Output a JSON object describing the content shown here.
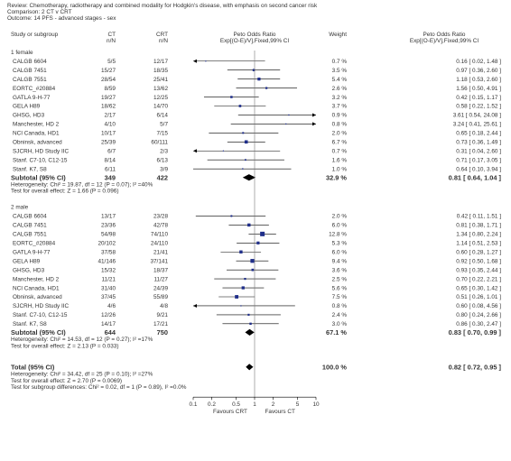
{
  "header": {
    "review": "Review:  Chemotherapy, radiotherapy and combined modality for Hodgkin's disease, with emphasis on second cancer risk",
    "comparison": "Comparison:  2 CT v CRT",
    "outcome": "Outcome:  14 PFS - advanced stages - sex"
  },
  "columns": {
    "study": "Study or subgroup",
    "ct": "CT",
    "crt": "CRT",
    "n_over_n": "n/N",
    "or_title": "Peto Odds Ratio",
    "or_sub": "Exp[(O-E)/V],Fixed,99% CI",
    "weight": "Weight",
    "or2_title": "Peto Odds Ratio",
    "or2_sub": "Exp[(O-E)/V],Fixed,99% CI"
  },
  "chart_data": {
    "type": "forest",
    "x_scale": "log",
    "x_ticks": [
      0.1,
      0.2,
      0.5,
      1,
      2,
      5,
      10
    ],
    "x_tick_labels": [
      "0.1",
      "0.2",
      "0.5",
      "1",
      "2",
      "5",
      "10"
    ],
    "xlim": [
      0.1,
      10
    ],
    "favours_left": "Favours CRT",
    "favours_right": "Favours CT",
    "groups": [
      {
        "label": "1 female",
        "studies": [
          {
            "name": "CALGB 6604",
            "ct": "5/5",
            "crt": "12/17",
            "weight": "0.7 %",
            "ci_text": "0.16 [ 0.02, 1.48 ]",
            "or": 0.16,
            "lo": 0.02,
            "hi": 1.48,
            "w": 0.7
          },
          {
            "name": "CALGB 7451",
            "ct": "15/27",
            "crt": "18/35",
            "weight": "3.5 %",
            "ci_text": "0.97 [ 0.36, 2.60 ]",
            "or": 0.97,
            "lo": 0.36,
            "hi": 2.6,
            "w": 3.5
          },
          {
            "name": "CALGB 7551",
            "ct": "28/54",
            "crt": "25/41",
            "weight": "5.4 %",
            "ci_text": "1.18 [ 0.53, 2.60 ]",
            "or": 1.18,
            "lo": 0.53,
            "hi": 2.6,
            "w": 5.4
          },
          {
            "name": "EORTC_#20884",
            "ct": "8/59",
            "crt": "13/62",
            "weight": "2.6 %",
            "ci_text": "1.56 [ 0.50, 4.91 ]",
            "or": 1.56,
            "lo": 0.5,
            "hi": 4.91,
            "w": 2.6
          },
          {
            "name": "GATLA 9-H-77",
            "ct": "19/27",
            "crt": "12/25",
            "weight": "3.2 %",
            "ci_text": "0.42 [ 0.15, 1.17 ]",
            "or": 0.42,
            "lo": 0.15,
            "hi": 1.17,
            "w": 3.2
          },
          {
            "name": "GELA H89",
            "ct": "18/62",
            "crt": "14/70",
            "weight": "3.7 %",
            "ci_text": "0.58 [ 0.22, 1.52 ]",
            "or": 0.58,
            "lo": 0.22,
            "hi": 1.52,
            "w": 3.7
          },
          {
            "name": "GHSG, HD3",
            "ct": "2/17",
            "crt": "6/14",
            "weight": "0.9 %",
            "ci_text": "3.61 [ 0.54, 24.08 ]",
            "or": 3.61,
            "lo": 0.54,
            "hi": 24.08,
            "w": 0.9
          },
          {
            "name": "Manchester, HD 2",
            "ct": "4/10",
            "crt": "5/7",
            "weight": "0.8 %",
            "ci_text": "3.24 [ 0.41, 25.61 ]",
            "or": 3.24,
            "lo": 0.41,
            "hi": 25.61,
            "w": 0.8
          },
          {
            "name": "NCI Canada, HD1",
            "ct": "10/17",
            "crt": "7/15",
            "weight": "2.0 %",
            "ci_text": "0.65 [ 0.18, 2.44 ]",
            "or": 0.65,
            "lo": 0.18,
            "hi": 2.44,
            "w": 2.0
          },
          {
            "name": "Obninsk, advanced",
            "ct": "25/39",
            "crt": "60/111",
            "weight": "6.7 %",
            "ci_text": "0.73 [ 0.36, 1.49 ]",
            "or": 0.73,
            "lo": 0.36,
            "hi": 1.49,
            "w": 6.7
          },
          {
            "name": "SJCRH, HD Study IIC",
            "ct": "6/7",
            "crt": "2/3",
            "weight": "0.7 %",
            "ci_text": "0.31 [ 0.04, 2.60 ]",
            "or": 0.31,
            "lo": 0.04,
            "hi": 2.6,
            "w": 0.7
          },
          {
            "name": "Stanf. C7-10, C12-15",
            "ct": "8/14",
            "crt": "6/13",
            "weight": "1.6 %",
            "ci_text": "0.71 [ 0.17, 3.05 ]",
            "or": 0.71,
            "lo": 0.17,
            "hi": 3.05,
            "w": 1.6
          },
          {
            "name": "Stanf. K7, S8",
            "ct": "6/11",
            "crt": "3/9",
            "weight": "1.0 %",
            "ci_text": "0.64 [ 0.10, 3.94 ]",
            "or": 0.64,
            "lo": 0.1,
            "hi": 3.94,
            "w": 1.0
          }
        ],
        "subtotal": {
          "label": "Subtotal (95% CI)",
          "ct": "349",
          "crt": "422",
          "weight": "32.9 %",
          "ci_text": "0.81 [ 0.64, 1.04 ]",
          "or": 0.81,
          "lo": 0.64,
          "hi": 1.04
        },
        "heterogeneity": "Heterogeneity: Chi² = 19.87, df = 12 (P = 0.07); I² =40%",
        "overall_effect": "Test for overall effect: Z = 1.66 (P = 0.096)"
      },
      {
        "label": "2 male",
        "studies": [
          {
            "name": "CALGB 6604",
            "ct": "13/17",
            "crt": "23/28",
            "weight": "2.0 %",
            "ci_text": "0.42 [ 0.11, 1.51 ]",
            "or": 0.42,
            "lo": 0.11,
            "hi": 1.51,
            "w": 2.0
          },
          {
            "name": "CALGB 7451",
            "ct": "23/36",
            "crt": "42/78",
            "weight": "6.0 %",
            "ci_text": "0.81 [ 0.38, 1.71 ]",
            "or": 0.81,
            "lo": 0.38,
            "hi": 1.71,
            "w": 6.0
          },
          {
            "name": "CALGB 7551",
            "ct": "54/98",
            "crt": "74/110",
            "weight": "12.8 %",
            "ci_text": "1.34 [ 0.80, 2.24 ]",
            "or": 1.34,
            "lo": 0.8,
            "hi": 2.24,
            "w": 12.8
          },
          {
            "name": "EORTC_#20884",
            "ct": "20/102",
            "crt": "24/110",
            "weight": "5.3 %",
            "ci_text": "1.14 [ 0.51, 2.53 ]",
            "or": 1.14,
            "lo": 0.51,
            "hi": 2.53,
            "w": 5.3
          },
          {
            "name": "GATLA 9-H-77",
            "ct": "37/58",
            "crt": "21/41",
            "weight": "6.0 %",
            "ci_text": "0.60 [ 0.28, 1.27 ]",
            "or": 0.6,
            "lo": 0.28,
            "hi": 1.27,
            "w": 6.0
          },
          {
            "name": "GELA H89",
            "ct": "41/146",
            "crt": "37/141",
            "weight": "9.4 %",
            "ci_text": "0.92 [ 0.50, 1.68 ]",
            "or": 0.92,
            "lo": 0.5,
            "hi": 1.68,
            "w": 9.4
          },
          {
            "name": "GHSG, HD3",
            "ct": "15/32",
            "crt": "18/37",
            "weight": "3.6 %",
            "ci_text": "0.93 [ 0.35, 2.44 ]",
            "or": 0.93,
            "lo": 0.35,
            "hi": 2.44,
            "w": 3.6
          },
          {
            "name": "Manchester, HD 2",
            "ct": "11/21",
            "crt": "11/27",
            "weight": "2.5 %",
            "ci_text": "0.70 [ 0.22, 2.21 ]",
            "or": 0.7,
            "lo": 0.22,
            "hi": 2.21,
            "w": 2.5
          },
          {
            "name": "NCI Canada, HD1",
            "ct": "31/40",
            "crt": "24/39",
            "weight": "5.6 %",
            "ci_text": "0.65 [ 0.30, 1.42 ]",
            "or": 0.65,
            "lo": 0.3,
            "hi": 1.42,
            "w": 5.6
          },
          {
            "name": "Obninsk, advanced",
            "ct": "37/45",
            "crt": "55/89",
            "weight": "7.5 %",
            "ci_text": "0.51 [ 0.26, 1.01 ]",
            "or": 0.51,
            "lo": 0.26,
            "hi": 1.01,
            "w": 7.5
          },
          {
            "name": "SJCRH, HD Study IIC",
            "ct": "4/6",
            "crt": "4/8",
            "weight": "0.8 %",
            "ci_text": "0.60 [ 0.08, 4.56 ]",
            "or": 0.6,
            "lo": 0.08,
            "hi": 4.56,
            "w": 0.8
          },
          {
            "name": "Stanf. C7-10, C12-15",
            "ct": "12/26",
            "crt": "9/21",
            "weight": "2.4 %",
            "ci_text": "0.80 [ 0.24, 2.66 ]",
            "or": 0.8,
            "lo": 0.24,
            "hi": 2.66,
            "w": 2.4
          },
          {
            "name": "Stanf. K7, S8",
            "ct": "14/17",
            "crt": "17/21",
            "weight": "3.0 %",
            "ci_text": "0.86 [ 0.30, 2.47 ]",
            "or": 0.86,
            "lo": 0.3,
            "hi": 2.47,
            "w": 3.0
          }
        ],
        "subtotal": {
          "label": "Subtotal (95% CI)",
          "ct": "644",
          "crt": "750",
          "weight": "67.1 %",
          "ci_text": "0.83 [ 0.70, 0.99 ]",
          "or": 0.83,
          "lo": 0.7,
          "hi": 0.99
        },
        "heterogeneity": "Heterogeneity: Chi² = 14.53, df = 12 (P = 0.27); I² =17%",
        "overall_effect": "Test for overall effect: Z = 2.13 (P = 0.033)"
      }
    ],
    "total": {
      "label": "Total (95% CI)",
      "ct": "993",
      "crt": "1172",
      "weight": "100.0 %",
      "ci_text": "0.82 [ 0.72, 0.95 ]",
      "or": 0.82,
      "lo": 0.72,
      "hi": 0.95
    },
    "total_notes": [
      "Heterogeneity: Chi² = 34.42, df = 25 (P = 0.10); I² =27%",
      "Test for overall effect: Z = 2.70 (P = 0.0069)",
      "Test for subgroup differences: Chi² = 0.02, df = 1 (P = 0.89), I² =0.0%"
    ]
  }
}
